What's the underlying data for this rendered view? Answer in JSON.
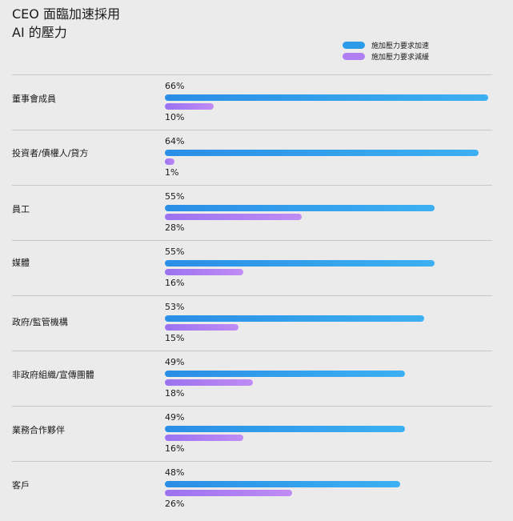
{
  "chart_data": {
    "type": "bar",
    "orientation": "horizontal",
    "title_lines": [
      "CEO 面臨加速採用",
      "AI 的壓力"
    ],
    "categories": [
      "董事會成員",
      "投資者/債權人/貸方",
      "員工",
      "媒體",
      "政府/監管機構",
      "非政府組織/宣傳團體",
      "業務合作夥伴",
      "客戶"
    ],
    "series": [
      {
        "name": "施加壓力要求加速",
        "color": "#2b9be9",
        "values": [
          66,
          64,
          55,
          55,
          53,
          49,
          49,
          48
        ],
        "labels": [
          "66%",
          "64%",
          "55%",
          "55%",
          "53%",
          "49%",
          "49%",
          "48%"
        ]
      },
      {
        "name": "施加壓力要求減緩",
        "color": "#b07ef3",
        "values": [
          10,
          1,
          28,
          16,
          15,
          18,
          16,
          26
        ],
        "labels": [
          "10%",
          "1%",
          "28%",
          "16%",
          "15%",
          "18%",
          "16%",
          "26%"
        ]
      }
    ],
    "xlim": [
      0,
      66
    ],
    "legend_position": "top-right",
    "grid": false
  }
}
